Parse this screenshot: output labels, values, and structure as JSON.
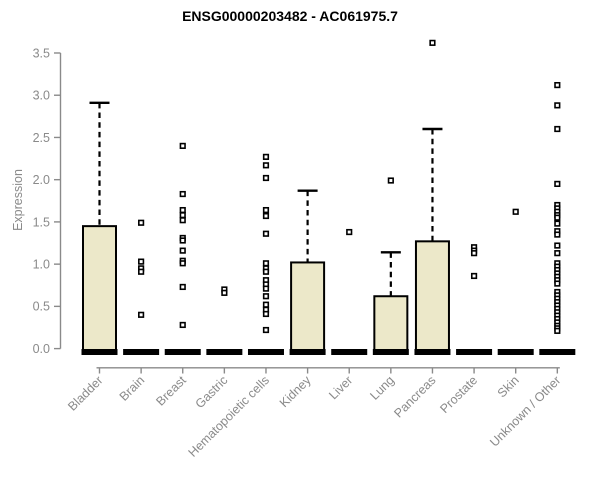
{
  "title": "ENSG00000203482 - AC061975.7",
  "colors": {
    "background": "#ffffff",
    "box_fill": "#ece8c9",
    "box_stroke": "#000000",
    "median_band": "#000000",
    "outlier_stroke": "#000000",
    "outlier_fill": "#ffffff",
    "axis": "#8a8a8a",
    "tick_label": "#8a8a8a",
    "title_color": "#000000"
  },
  "chart_data": {
    "type": "boxplot",
    "title": "ENSG00000203482 - AC061975.7",
    "xlabel": "",
    "ylabel": "Expression",
    "ylim": [
      0,
      3.5
    ],
    "yticks": [
      0.0,
      0.5,
      1.0,
      1.5,
      2.0,
      2.5,
      3.0,
      3.5
    ],
    "grid": false,
    "legend": "none",
    "categories": [
      "Bladder",
      "Brain",
      "Breast",
      "Gastric",
      "Hematopoietic cells",
      "Kidney",
      "Liver",
      "Lung",
      "Pancreas",
      "Prostate",
      "Skin",
      "Unknown / Other"
    ],
    "series": [
      {
        "name": "Bladder",
        "whisker_low": 0,
        "q1": 0,
        "median": 0,
        "q3": 1.45,
        "whisker_high": 2.91,
        "outliers": []
      },
      {
        "name": "Brain",
        "whisker_low": 0,
        "q1": 0,
        "median": 0,
        "q3": 0,
        "whisker_high": 0,
        "outliers": [
          1.49,
          1.03,
          0.95,
          0.91,
          0.4
        ]
      },
      {
        "name": "Breast",
        "whisker_low": 0,
        "q1": 0,
        "median": 0,
        "q3": 0,
        "whisker_high": 0,
        "outliers": [
          2.4,
          1.83,
          1.64,
          1.58,
          1.52,
          1.31,
          1.28,
          1.16,
          1.04,
          1.01,
          0.73,
          0.28
        ]
      },
      {
        "name": "Gastric",
        "whisker_low": 0,
        "q1": 0,
        "median": 0,
        "q3": 0,
        "whisker_high": 0,
        "outliers": [
          0.7,
          0.66
        ]
      },
      {
        "name": "Hematopoietic cells",
        "whisker_low": 0,
        "q1": 0,
        "median": 0,
        "q3": 0,
        "whisker_high": 0,
        "outliers": [
          2.27,
          2.17,
          2.02,
          1.64,
          1.57,
          1.36,
          1.01,
          0.95,
          0.91,
          0.81,
          0.76,
          0.71,
          0.62,
          0.52,
          0.46,
          0.41,
          0.22
        ]
      },
      {
        "name": "Kidney",
        "whisker_low": 0,
        "q1": 0,
        "median": 0,
        "q3": 1.02,
        "whisker_high": 1.87,
        "outliers": []
      },
      {
        "name": "Liver",
        "whisker_low": 0,
        "q1": 0,
        "median": 0,
        "q3": 0,
        "whisker_high": 0,
        "outliers": [
          1.38
        ]
      },
      {
        "name": "Lung",
        "whisker_low": 0,
        "q1": 0,
        "median": 0,
        "q3": 0.62,
        "whisker_high": 1.14,
        "outliers": [
          1.99
        ]
      },
      {
        "name": "Pancreas",
        "whisker_low": 0,
        "q1": 0,
        "median": 0,
        "q3": 1.27,
        "whisker_high": 2.6,
        "outliers": [
          3.62
        ]
      },
      {
        "name": "Prostate",
        "whisker_low": 0,
        "q1": 0,
        "median": 0,
        "q3": 0,
        "whisker_high": 0,
        "outliers": [
          1.2,
          1.16,
          1.13,
          0.86
        ]
      },
      {
        "name": "Skin",
        "whisker_low": 0,
        "q1": 0,
        "median": 0,
        "q3": 0,
        "whisker_high": 0,
        "outliers": [
          1.62
        ]
      },
      {
        "name": "Unknown / Other",
        "whisker_low": 0,
        "q1": 0,
        "median": 0,
        "q3": 0,
        "whisker_high": 0,
        "outliers": [
          3.12,
          2.88,
          2.6,
          1.95,
          1.7,
          1.66,
          1.62,
          1.58,
          1.55,
          1.48,
          1.39,
          1.35,
          1.22,
          1.13,
          1.01,
          0.97,
          0.93,
          0.89,
          0.85,
          0.81,
          0.77,
          0.67,
          0.63,
          0.59,
          0.55,
          0.51,
          0.47,
          0.43,
          0.39,
          0.35,
          0.31,
          0.27,
          0.24,
          0.21
        ]
      }
    ]
  }
}
